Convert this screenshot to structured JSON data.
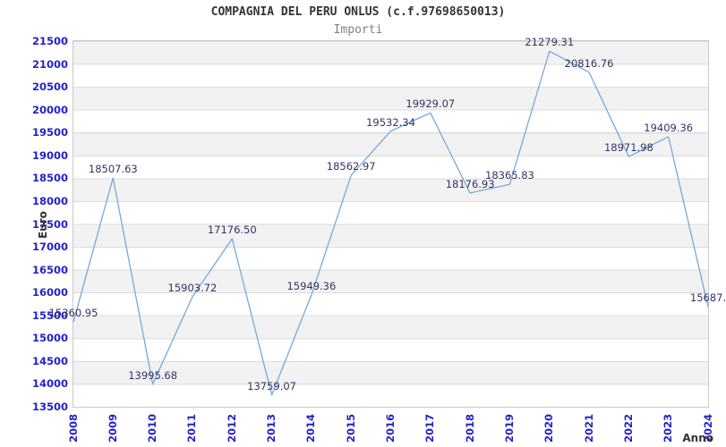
{
  "chart_data": {
    "type": "line",
    "title": "COMPAGNIA DEL PERU ONLUS (c.f.97698650013)",
    "subtitle": "Importi",
    "xlabel": "Anno",
    "ylabel": "Euro",
    "categories": [
      "2008",
      "2009",
      "2010",
      "2011",
      "2012",
      "2013",
      "2014",
      "2015",
      "2016",
      "2017",
      "2018",
      "2019",
      "2020",
      "2021",
      "2022",
      "2023",
      "2024"
    ],
    "series": [
      {
        "name": "Importi",
        "values": [
          15360.95,
          18507.63,
          13995.68,
          15903.72,
          17176.5,
          13759.07,
          15949.36,
          18562.97,
          19532.34,
          19929.07,
          18176.93,
          18365.83,
          21279.31,
          20816.76,
          18971.98,
          19409.36,
          15687.0
        ]
      }
    ],
    "point_labels": [
      "15360.95",
      "18507.63",
      "13995.68",
      "15903.72",
      "17176.50",
      "13759.07",
      "15949.36",
      "18562.97",
      "19532.34",
      "19929.07",
      "18176.93",
      "18365.83",
      "21279.31",
      "20816.76",
      "18971.98",
      "19409.36",
      "15687."
    ],
    "ylim": [
      13500,
      21500
    ],
    "ytick_step": 500,
    "legend": "none",
    "grid": "horizontal-bands",
    "colors": {
      "line": "#74a9e0",
      "axis_text": "#2222cc",
      "value_text": "#333366",
      "band": "#f2f2f2",
      "band_alt": "#ffffff",
      "gridline": "#dcdcdc",
      "plot_border": "#c9c9c9",
      "title_text": "#333333",
      "subtitle_text": "#808080"
    }
  }
}
